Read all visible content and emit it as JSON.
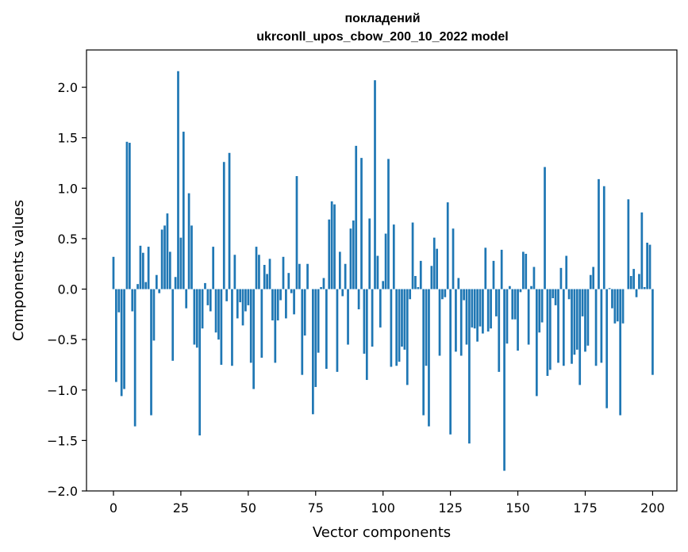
{
  "chart_data": {
    "type": "bar",
    "title": "покладений",
    "subtitle": "ukrconll_upos_cbow_200_10_2022 model",
    "xlabel": "Vector components",
    "ylabel": "Components values",
    "xlim": [
      -10,
      209
    ],
    "ylim": [
      -2.0,
      2.37
    ],
    "xticks": [
      0,
      25,
      50,
      75,
      100,
      125,
      150,
      175,
      200
    ],
    "yticks": [
      -2.0,
      -1.5,
      -1.0,
      -0.5,
      0.0,
      0.5,
      1.0,
      1.5,
      2.0
    ],
    "ytick_labels": [
      "−2.0",
      "−1.5",
      "−1.0",
      "−0.5",
      "0.0",
      "0.5",
      "1.0",
      "1.5",
      "2.0"
    ],
    "bar_color": "#1f77b4",
    "grid": false,
    "values": [
      0.32,
      -0.92,
      -0.23,
      -1.06,
      -0.99,
      1.46,
      1.45,
      -0.22,
      -1.36,
      0.05,
      0.43,
      0.36,
      0.07,
      0.42,
      -1.25,
      -0.51,
      0.14,
      -0.04,
      0.59,
      0.63,
      0.75,
      0.37,
      -0.71,
      0.12,
      2.16,
      0.51,
      1.56,
      -0.19,
      0.95,
      0.63,
      -0.55,
      -0.58,
      -1.45,
      -0.39,
      0.06,
      -0.16,
      -0.22,
      0.42,
      -0.43,
      -0.5,
      -0.75,
      1.26,
      -0.12,
      1.35,
      -0.76,
      0.34,
      -0.29,
      -0.13,
      -0.36,
      -0.22,
      -0.16,
      -0.73,
      -0.99,
      0.42,
      0.34,
      -0.68,
      0.24,
      0.15,
      0.3,
      -0.31,
      -0.73,
      -0.31,
      -0.11,
      0.32,
      -0.29,
      0.16,
      -0.04,
      -0.25,
      1.12,
      0.25,
      -0.85,
      -0.46,
      0.25,
      0.0,
      -1.24,
      -0.97,
      -0.63,
      0.02,
      0.11,
      -0.79,
      0.69,
      0.87,
      0.84,
      -0.82,
      0.37,
      -0.07,
      0.25,
      -0.55,
      0.6,
      0.68,
      1.42,
      -0.2,
      1.3,
      -0.64,
      -0.9,
      0.7,
      -0.57,
      2.07,
      0.33,
      -0.38,
      0.08,
      0.55,
      1.29,
      -0.77,
      0.64,
      -0.76,
      -0.72,
      -0.57,
      -0.6,
      -0.95,
      -0.1,
      0.66,
      0.13,
      0.02,
      0.28,
      -1.25,
      -0.76,
      -1.36,
      0.23,
      0.51,
      0.4,
      -0.66,
      -0.1,
      -0.08,
      0.86,
      -1.44,
      0.6,
      -0.62,
      0.11,
      -0.66,
      -0.11,
      -0.55,
      -1.53,
      -0.38,
      -0.39,
      -0.52,
      -0.37,
      -0.44,
      0.41,
      -0.42,
      -0.39,
      0.28,
      -0.27,
      -0.82,
      0.39,
      -1.8,
      -0.54,
      0.03,
      -0.3,
      -0.3,
      -0.61,
      -0.03,
      0.37,
      0.35,
      -0.55,
      0.03,
      0.22,
      -1.06,
      -0.43,
      -0.33,
      1.21,
      -0.86,
      -0.8,
      -0.09,
      -0.16,
      -0.73,
      0.21,
      -0.76,
      0.33,
      -0.1,
      -0.74,
      -0.65,
      -0.6,
      -0.95,
      -0.27,
      -0.62,
      -0.56,
      0.14,
      0.22,
      -0.76,
      1.09,
      -0.73,
      1.02,
      -1.18,
      0.01,
      -0.19,
      -0.34,
      -0.32,
      -1.25,
      -0.34,
      0.0,
      0.89,
      0.13,
      0.2,
      -0.08,
      0.15,
      0.76,
      0.02,
      0.46,
      0.44,
      -0.85
    ]
  }
}
